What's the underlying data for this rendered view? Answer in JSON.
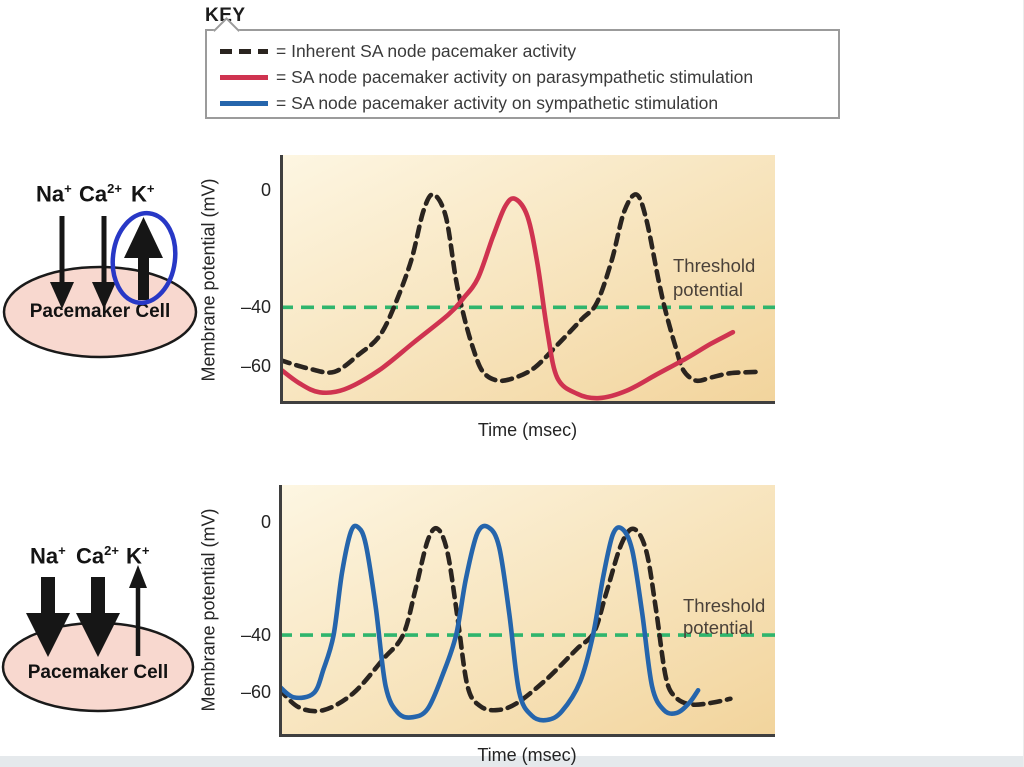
{
  "key": {
    "title": "KEY",
    "entries": [
      {
        "swatch": "dashed-black-line",
        "color": "#2a241f",
        "label": "= Inherent SA node pacemaker activity"
      },
      {
        "swatch": "solid-red-line",
        "color": "#cf3350",
        "label": "= SA node pacemaker activity on parasympathetic stimulation"
      },
      {
        "swatch": "solid-blue-line",
        "color": "#2565ac",
        "label": "= SA node pacemaker activity on sympathetic stimulation"
      }
    ]
  },
  "cell_figures": [
    {
      "id": "parasympathetic-cell",
      "ions": [
        {
          "base": "Na",
          "sup": "+",
          "arrow": "thin-down"
        },
        {
          "base": "Ca",
          "sup": "2+",
          "arrow": "thin-down"
        },
        {
          "base": "K",
          "sup": "+",
          "arrow": "thick-up",
          "circled": true
        }
      ],
      "cell_label": "Pacemaker Cell",
      "annotation_color": "#2838c6"
    },
    {
      "id": "sympathetic-cell",
      "ions": [
        {
          "base": "Na",
          "sup": "+",
          "arrow": "thick-down"
        },
        {
          "base": "Ca",
          "sup": "2+",
          "arrow": "thick-down"
        },
        {
          "base": "K",
          "sup": "+",
          "arrow": "thin-up"
        }
      ],
      "cell_label": "Pacemaker Cell",
      "annotation_color": ""
    }
  ],
  "colors": {
    "cell_fill": "#f8d8cf",
    "cell_outline": "#1a1a1a",
    "plot_bg_light": "#fdf6e2",
    "plot_bg_dark": "#f2d49c",
    "axis": "#3f3f3f",
    "footer_strip": "#e5e9ec"
  },
  "chart_data": [
    {
      "type": "line",
      "xlabel": "Time (msec)",
      "ylabel": "Membrane potential (mV)",
      "yticks": [
        {
          "value": 0,
          "label": "0"
        },
        {
          "value": -40,
          "label": "–40"
        },
        {
          "value": -60,
          "label": "–60"
        }
      ],
      "ylim": [
        -73,
        12
      ],
      "x_units": "percent of unlabeled time axis",
      "grid": false,
      "threshold": {
        "value": -40,
        "label": "Threshold\npotential",
        "color": "#2fb56d"
      },
      "series": [
        {
          "name": "Inherent SA node pacemaker activity",
          "style": "dashed",
          "color": "#2a241f",
          "points": [
            [
              0,
              -58
            ],
            [
              6,
              -61
            ],
            [
              11,
              -62
            ],
            [
              16,
              -56
            ],
            [
              20,
              -50
            ],
            [
              23,
              -40
            ],
            [
              26.5,
              -24
            ],
            [
              29,
              -7
            ],
            [
              31,
              -1.5
            ],
            [
              33.5,
              -9
            ],
            [
              35.5,
              -30
            ],
            [
              37,
              -42
            ],
            [
              39,
              -54
            ],
            [
              41,
              -62
            ],
            [
              44,
              -65
            ],
            [
              47.5,
              -64
            ],
            [
              51.5,
              -60.5
            ],
            [
              56.5,
              -52
            ],
            [
              61,
              -44
            ],
            [
              64,
              -38.5
            ],
            [
              67,
              -24
            ],
            [
              69.5,
              -7.5
            ],
            [
              72,
              -1.5
            ],
            [
              74,
              -10
            ],
            [
              76.5,
              -31
            ],
            [
              78,
              -42
            ],
            [
              80,
              -54
            ],
            [
              81.5,
              -61.5
            ],
            [
              84,
              -65
            ],
            [
              87,
              -64
            ],
            [
              91,
              -62.5
            ],
            [
              97,
              -62
            ]
          ]
        },
        {
          "name": "SA node pacemaker activity on parasympathetic stimulation",
          "style": "solid",
          "color": "#cf3350",
          "points": [
            [
              0,
              -61
            ],
            [
              4,
              -66
            ],
            [
              8,
              -69
            ],
            [
              13,
              -68
            ],
            [
              20,
              -61.5
            ],
            [
              27,
              -52
            ],
            [
              34,
              -42.5
            ],
            [
              37,
              -37
            ],
            [
              40,
              -30
            ],
            [
              43,
              -16
            ],
            [
              45.5,
              -5.5
            ],
            [
              47.5,
              -3
            ],
            [
              50,
              -9
            ],
            [
              52,
              -25
            ],
            [
              54,
              -48
            ],
            [
              56,
              -64
            ],
            [
              60,
              -69.5
            ],
            [
              64.5,
              -71
            ],
            [
              70,
              -68.5
            ],
            [
              76,
              -63
            ],
            [
              82,
              -57.5
            ],
            [
              87,
              -52.5
            ],
            [
              91.5,
              -48.5
            ]
          ]
        }
      ]
    },
    {
      "type": "line",
      "xlabel": "Time (msec)",
      "ylabel": "Membrane potential (mV)",
      "yticks": [
        {
          "value": 0,
          "label": "0"
        },
        {
          "value": -40,
          "label": "–40"
        },
        {
          "value": -60,
          "label": "–60"
        }
      ],
      "ylim": [
        -76,
        13
      ],
      "x_units": "percent of unlabeled time axis",
      "grid": false,
      "threshold": {
        "value": -40,
        "label": "Threshold\npotential",
        "color": "#2fb56d"
      },
      "series": [
        {
          "name": "Inherent SA node pacemaker activity",
          "style": "dashed",
          "color": "#2a241f",
          "points": [
            [
              0,
              -59
            ],
            [
              4,
              -65.5
            ],
            [
              9,
              -66.5
            ],
            [
              15,
              -60.5
            ],
            [
              21,
              -48.5
            ],
            [
              25,
              -40
            ],
            [
              27.5,
              -24
            ],
            [
              30,
              -6.5
            ],
            [
              32,
              -2.5
            ],
            [
              34,
              -11
            ],
            [
              36,
              -34
            ],
            [
              38,
              -58
            ],
            [
              40.5,
              -65
            ],
            [
              44,
              -66.5
            ],
            [
              48,
              -64
            ],
            [
              54,
              -55.5
            ],
            [
              60,
              -45
            ],
            [
              63.5,
              -39
            ],
            [
              66,
              -25
            ],
            [
              69,
              -8
            ],
            [
              71.5,
              -2.5
            ],
            [
              74,
              -10
            ],
            [
              76,
              -31
            ],
            [
              78,
              -55
            ],
            [
              80,
              -62
            ],
            [
              83,
              -64.5
            ],
            [
              87,
              -64
            ],
            [
              91,
              -62.5
            ]
          ]
        },
        {
          "name": "SA node pacemaker activity on sympathetic stimulation",
          "style": "solid",
          "color": "#2565ac",
          "points": [
            [
              0,
              -58
            ],
            [
              3,
              -62
            ],
            [
              7,
              -60.5
            ],
            [
              9,
              -52
            ],
            [
              11,
              -40
            ],
            [
              12.7,
              -18
            ],
            [
              14.5,
              -3.5
            ],
            [
              16,
              -2
            ],
            [
              17.5,
              -8
            ],
            [
              19.5,
              -30
            ],
            [
              21.5,
              -58
            ],
            [
              24,
              -67.5
            ],
            [
              27,
              -69
            ],
            [
              30,
              -66
            ],
            [
              33,
              -54
            ],
            [
              35.7,
              -40
            ],
            [
              37.7,
              -20
            ],
            [
              40,
              -4
            ],
            [
              42.3,
              -2
            ],
            [
              44.4,
              -9
            ],
            [
              46.4,
              -32
            ],
            [
              48.4,
              -60
            ],
            [
              51,
              -68.5
            ],
            [
              54,
              -70
            ],
            [
              57,
              -67
            ],
            [
              60.7,
              -56.5
            ],
            [
              63.3,
              -40
            ],
            [
              65.3,
              -20
            ],
            [
              67.3,
              -4.5
            ],
            [
              69.2,
              -2.5
            ],
            [
              71.2,
              -10
            ],
            [
              73.2,
              -32
            ],
            [
              75.2,
              -58
            ],
            [
              77.6,
              -66.5
            ],
            [
              80.2,
              -67.5
            ],
            [
              82.7,
              -64
            ],
            [
              84.5,
              -59.5
            ]
          ]
        }
      ]
    }
  ]
}
